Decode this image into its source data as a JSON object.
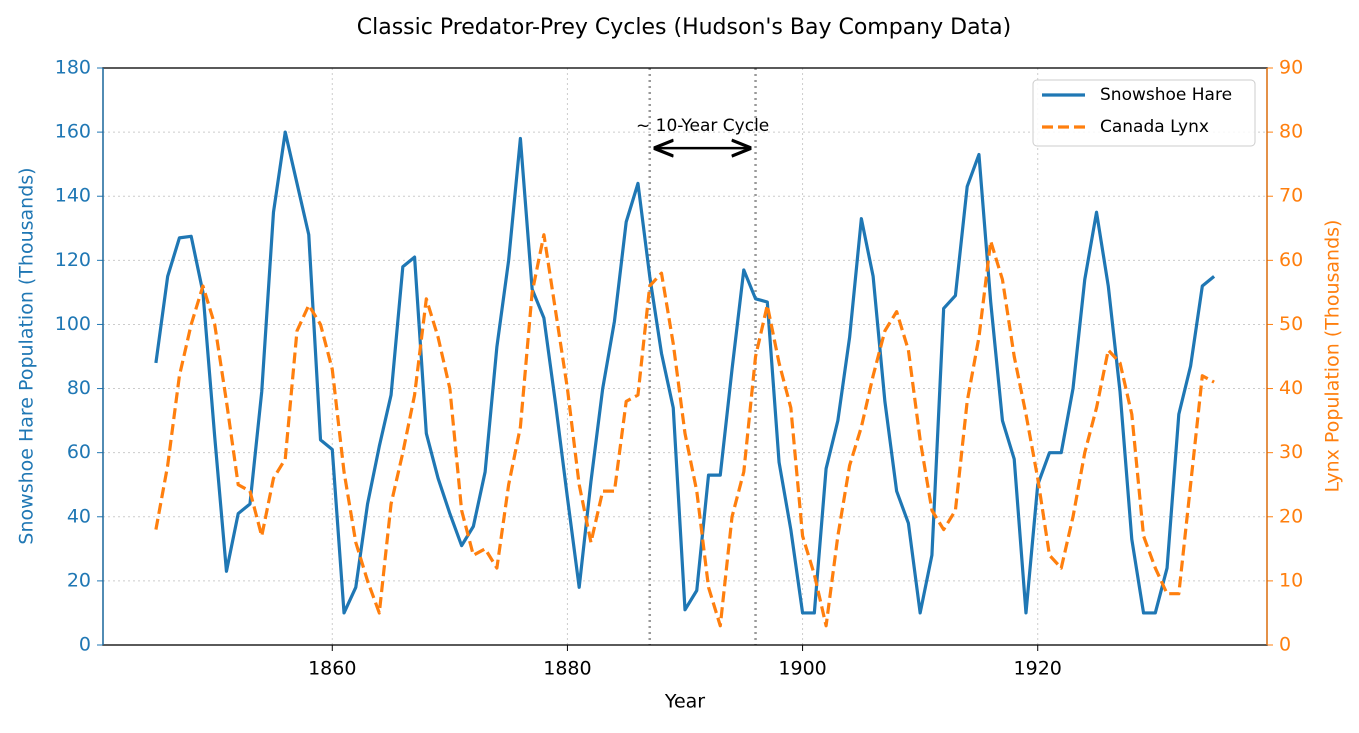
{
  "chart_data": {
    "type": "line",
    "title": "Classic Predator-Prey Cycles (Hudson's Bay Company Data)",
    "xlabel": "Year",
    "ylabel": "Snowshoe Hare Population (Thousands)",
    "y2label": "Lynx Population (Thousands)",
    "x": [
      1845,
      1846,
      1847,
      1848,
      1849,
      1850,
      1851,
      1852,
      1853,
      1854,
      1855,
      1856,
      1857,
      1858,
      1859,
      1860,
      1861,
      1862,
      1863,
      1864,
      1865,
      1866,
      1867,
      1868,
      1869,
      1870,
      1871,
      1872,
      1873,
      1874,
      1875,
      1876,
      1877,
      1878,
      1879,
      1880,
      1881,
      1882,
      1883,
      1884,
      1885,
      1886,
      1887,
      1888,
      1889,
      1890,
      1891,
      1892,
      1893,
      1894,
      1895,
      1896,
      1897,
      1898,
      1899,
      1900,
      1901,
      1902,
      1903,
      1904,
      1905,
      1906,
      1907,
      1908,
      1909,
      1910,
      1911,
      1912,
      1913,
      1914,
      1915,
      1916,
      1917,
      1918,
      1919,
      1920,
      1921,
      1922,
      1923,
      1924,
      1925,
      1926,
      1927,
      1928,
      1929,
      1930,
      1931,
      1932,
      1933,
      1934,
      1935
    ],
    "series": [
      {
        "name": "Snowshoe Hare",
        "color": "#1f77b4",
        "dash": "solid",
        "axis": "y",
        "values": [
          88,
          115,
          127,
          127.5,
          110,
          65,
          23,
          41,
          44,
          79,
          135,
          160,
          144,
          128,
          64,
          61,
          10,
          18,
          44,
          62,
          78,
          118,
          121,
          66,
          52,
          41,
          31,
          37,
          54,
          93,
          120,
          158,
          111,
          102,
          75,
          46,
          18,
          51,
          80,
          101,
          132,
          144,
          115,
          91,
          74,
          11,
          17,
          53,
          53,
          86,
          117,
          108,
          107,
          57,
          36,
          10,
          10,
          55,
          70,
          96,
          133,
          115,
          76,
          48,
          38,
          10,
          28,
          105,
          109,
          143,
          153,
          107,
          70,
          58,
          10,
          50,
          60,
          60,
          80,
          114,
          135,
          112,
          79,
          33,
          10,
          10,
          24,
          72,
          87,
          112,
          115
        ]
      },
      {
        "name": "Canada Lynx",
        "color": "#ff7f0e",
        "dash": "dashed",
        "axis": "y2",
        "values": [
          18,
          28,
          42,
          50,
          56,
          50,
          38,
          25,
          24,
          17,
          26,
          29,
          49,
          53,
          50,
          43,
          27,
          16,
          10,
          5,
          22,
          30,
          39,
          54,
          48,
          40,
          21,
          14,
          15,
          12,
          25,
          34,
          55,
          64,
          52,
          40,
          25,
          16,
          24,
          24,
          38,
          39,
          56,
          58,
          47,
          33,
          24,
          9,
          3,
          20,
          27,
          45,
          53,
          44,
          37,
          17,
          11,
          3,
          17,
          28,
          34,
          42,
          49,
          52,
          46,
          32,
          21,
          18,
          21,
          38,
          48,
          63,
          57,
          45,
          36,
          26,
          14,
          12,
          20,
          30,
          37,
          46,
          44,
          36,
          17,
          12,
          8,
          8,
          25,
          42,
          41
        ]
      }
    ],
    "xlim": [
      1840.5,
      1939.5
    ],
    "xticks": [
      1860,
      1880,
      1900,
      1920
    ],
    "ylim": [
      0,
      180
    ],
    "yticks": [
      0,
      20,
      40,
      60,
      80,
      100,
      120,
      140,
      160,
      180
    ],
    "y2lim": [
      0,
      90
    ],
    "y2ticks": [
      0,
      10,
      20,
      30,
      40,
      50,
      60,
      70,
      80,
      90
    ],
    "grid": true,
    "legend": "upper right",
    "vlines": [
      1887,
      1896
    ],
    "annotation": {
      "text": "~ 10-Year Cycle",
      "x_start": 1887.5,
      "x_end": 1895.5,
      "y": 155
    }
  }
}
